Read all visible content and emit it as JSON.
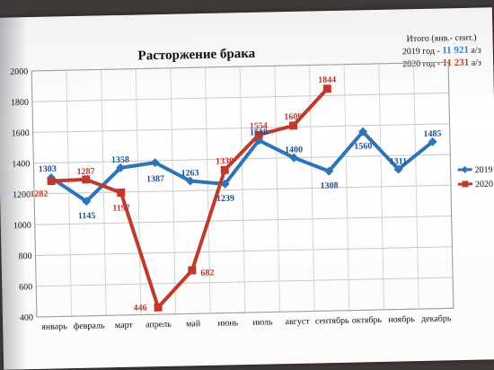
{
  "chart_data": {
    "type": "line",
    "title": "Расторжение брака",
    "categories": [
      "январь",
      "февраль",
      "март",
      "апрель",
      "май",
      "июнь",
      "июль",
      "август",
      "сентябрь",
      "октябрь",
      "ноябрь",
      "декабрь"
    ],
    "ylim": [
      400,
      2000
    ],
    "yticks": [
      400,
      600,
      800,
      1000,
      1200,
      1400,
      1600,
      1800,
      2000
    ],
    "grid": true,
    "legend_position": "right",
    "series": [
      {
        "name": "2019",
        "color": "#2e75b6",
        "values": [
          1303,
          1145,
          1358,
          1387,
          1263,
          1239,
          1518,
          1400,
          1308,
          1560,
          1311,
          1485
        ]
      },
      {
        "name": "2020",
        "color": "#c0392b",
        "values": [
          1282,
          1287,
          1197,
          446,
          682,
          1330,
          1554,
          1609,
          1844,
          null,
          null,
          null
        ]
      }
    ],
    "summary": {
      "heading": "Итого (янв.- сент.)",
      "line_2019_prefix": "2019 год - ",
      "line_2019_value": "11 921",
      "line_2019_unit": " а/з",
      "line_2020_prefix": "2020 год - ",
      "line_2020_value": "11 231",
      "line_2020_unit": " а/з"
    }
  }
}
